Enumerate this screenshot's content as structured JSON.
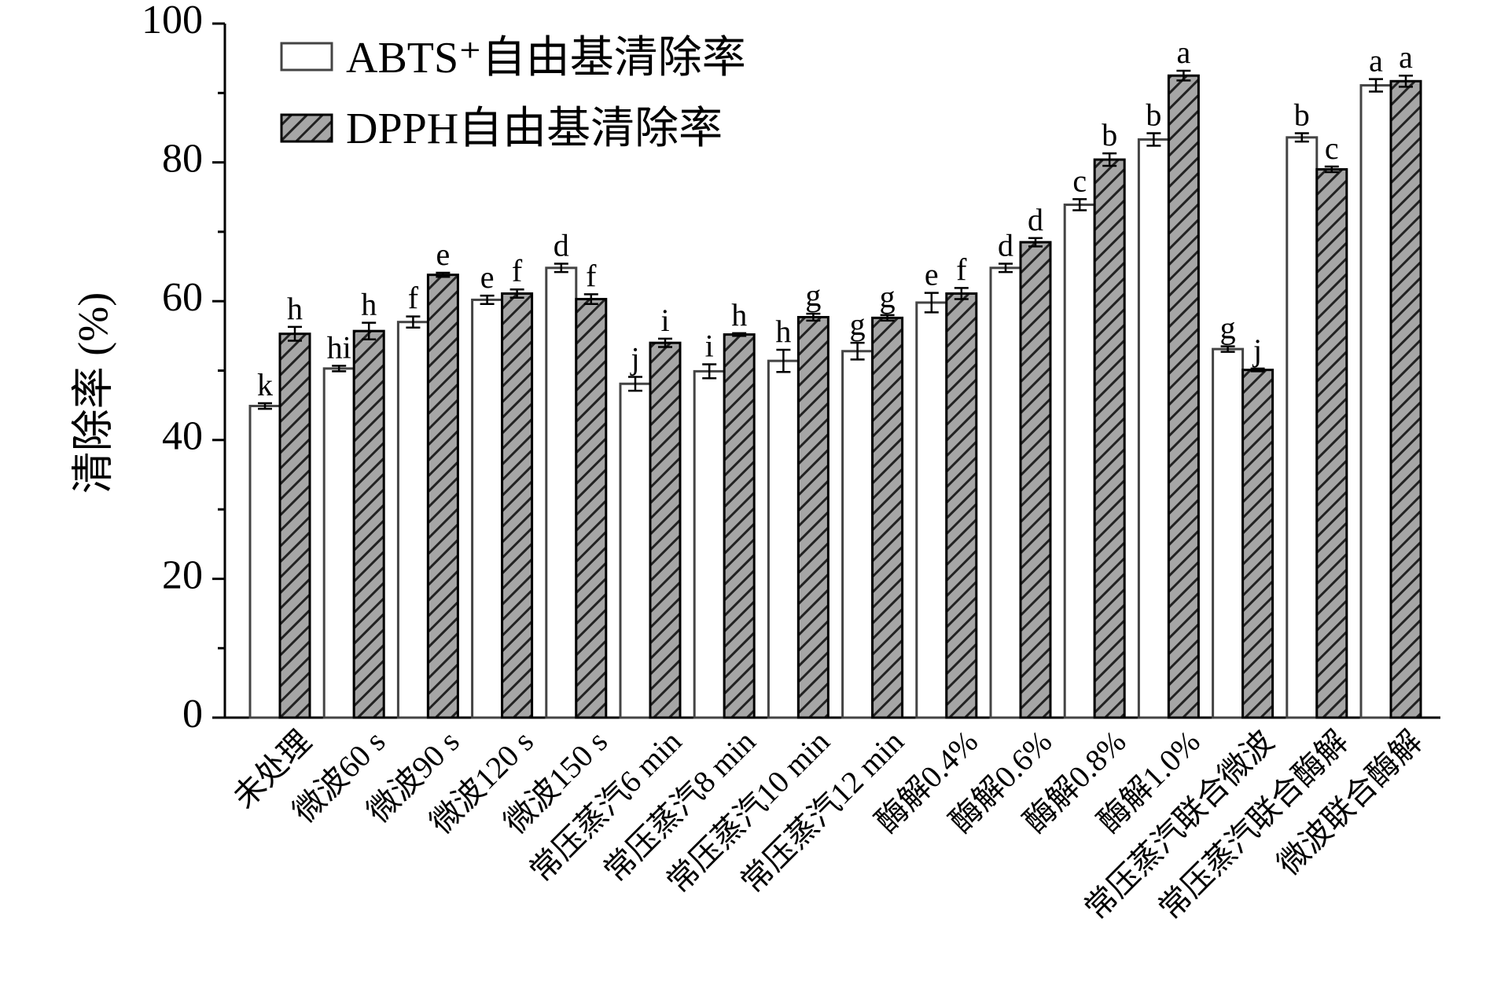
{
  "chart_data": {
    "type": "bar",
    "title": "",
    "xlabel": "",
    "ylabel": "清除率 (%)",
    "ylim": [
      0,
      100
    ],
    "yticks": [
      0,
      20,
      40,
      60,
      80,
      100
    ],
    "grid": false,
    "legend_position": "top-left",
    "categories": [
      "未处理",
      "微波60 s",
      "微波90 s",
      "微波120 s",
      "微波150 s",
      "常压蒸汽6 min",
      "常压蒸汽8 min",
      "常压蒸汽10 min",
      "常压蒸汽12 min",
      "酶解0.4%",
      "酶解0.6%",
      "酶解0.8%",
      "酶解1.0%",
      "常压蒸汽联合微波",
      "常压蒸汽联合酶解",
      "微波联合酶解"
    ],
    "series": [
      {
        "name": "ABTS⁺自由基清除率",
        "fill": "#ffffff",
        "pattern": "none",
        "values": [
          44.9,
          50.3,
          57.0,
          60.2,
          64.8,
          48.1,
          49.9,
          51.4,
          52.8,
          59.8,
          64.8,
          73.9,
          83.3,
          53.1,
          83.6,
          91.1
        ],
        "errors": [
          0.4,
          0.4,
          0.8,
          0.6,
          0.6,
          1.0,
          1.0,
          1.6,
          1.2,
          1.4,
          0.6,
          0.8,
          0.9,
          0.4,
          0.6,
          0.9
        ],
        "letters": [
          "k",
          "hi",
          "f",
          "e",
          "d",
          "j",
          "i",
          "h",
          "g",
          "e",
          "d",
          "c",
          "b",
          "g",
          "b",
          "a"
        ]
      },
      {
        "name": "DPPH自由基清除率",
        "fill": "#a6a6a6",
        "pattern": "diagonal-hatch",
        "values": [
          55.3,
          55.7,
          63.8,
          61.1,
          60.3,
          54.0,
          55.2,
          57.7,
          57.6,
          61.1,
          68.5,
          80.4,
          92.5,
          50.1,
          79.0,
          91.7
        ],
        "errors": [
          1.0,
          1.2,
          0.3,
          0.6,
          0.7,
          0.6,
          0.2,
          0.5,
          0.4,
          0.8,
          0.6,
          0.9,
          0.7,
          0.2,
          0.4,
          0.8
        ],
        "letters": [
          "h",
          "h",
          "e",
          "f",
          "f",
          "i",
          "h",
          "g",
          "g",
          "f",
          "d",
          "b",
          "a",
          "j",
          "c",
          "a"
        ]
      }
    ]
  }
}
